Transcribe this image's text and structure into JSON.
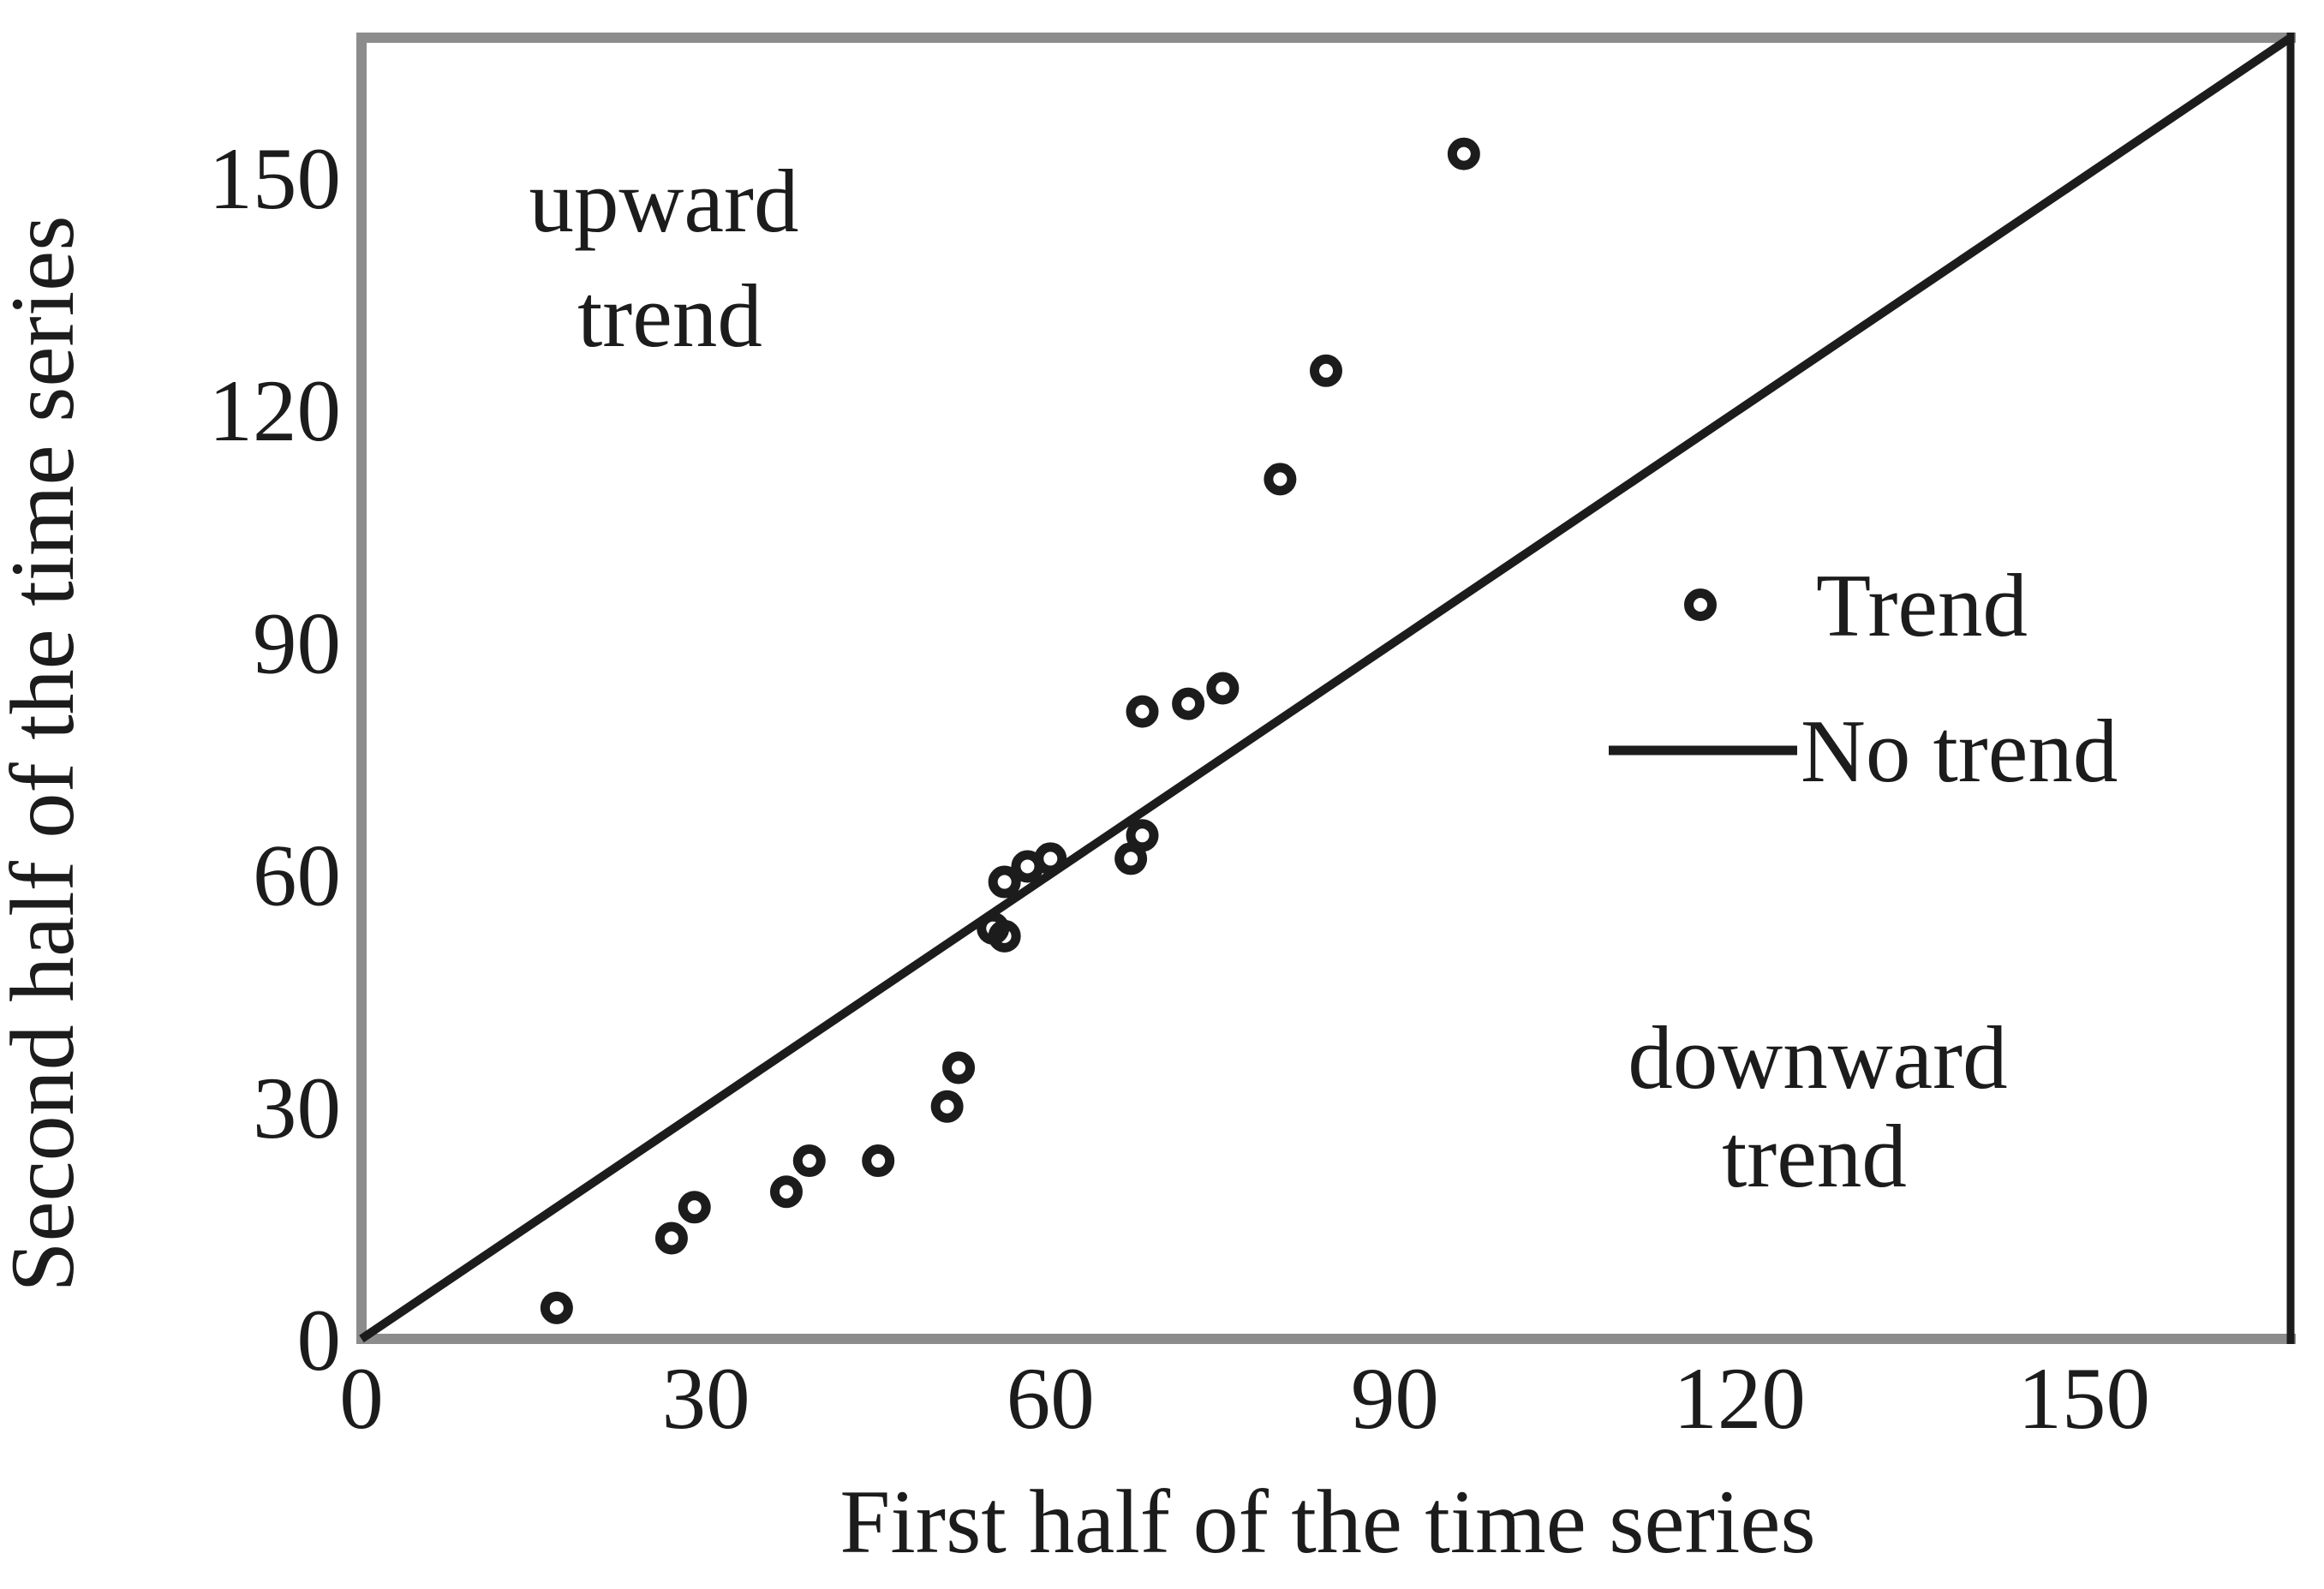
{
  "figure": {
    "background": "#ffffff",
    "ink_color": "#1c1c1c",
    "frame_color": "#8c8c8c"
  },
  "axes": {
    "x_title": "First half of the time series",
    "y_title": "Second half of the time series"
  },
  "legend": {
    "trend_label": "Trend",
    "no_trend_label": "No trend"
  },
  "annotations": {
    "upper": {
      "line1": "upward",
      "line2": "trend"
    },
    "lower": {
      "line1": "downward",
      "line2": "trend"
    }
  },
  "chart_data": {
    "type": "scatter",
    "title": "",
    "xlabel": "First half of the time series",
    "ylabel": "Second half of the time series",
    "xlim": [
      0,
      168
    ],
    "ylim": [
      0,
      168
    ],
    "x_ticks": [
      0,
      30,
      60,
      90,
      120,
      150
    ],
    "y_ticks": [
      0,
      30,
      60,
      90,
      120,
      150
    ],
    "grid": false,
    "legend_position": "inside-right",
    "series": [
      {
        "name": "Trend",
        "type": "scatter",
        "marker": "open-circle",
        "points": [
          [
            17,
            4
          ],
          [
            27,
            13
          ],
          [
            29,
            17
          ],
          [
            37,
            19
          ],
          [
            39,
            23
          ],
          [
            45,
            23
          ],
          [
            51,
            30
          ],
          [
            52,
            35
          ],
          [
            55,
            53
          ],
          [
            56,
            52
          ],
          [
            56,
            59
          ],
          [
            58,
            61
          ],
          [
            60,
            62
          ],
          [
            67,
            62
          ],
          [
            68,
            65
          ],
          [
            68,
            81
          ],
          [
            72,
            82
          ],
          [
            75,
            84
          ],
          [
            80,
            111
          ],
          [
            84,
            125
          ],
          [
            96,
            153
          ]
        ]
      },
      {
        "name": "No trend",
        "type": "line",
        "points": [
          [
            0,
            0
          ],
          [
            168,
            168
          ]
        ]
      }
    ],
    "annotations": [
      {
        "text": "upward trend",
        "meaning": "region above identity line"
      },
      {
        "text": "downward trend",
        "meaning": "region below identity line"
      }
    ]
  }
}
